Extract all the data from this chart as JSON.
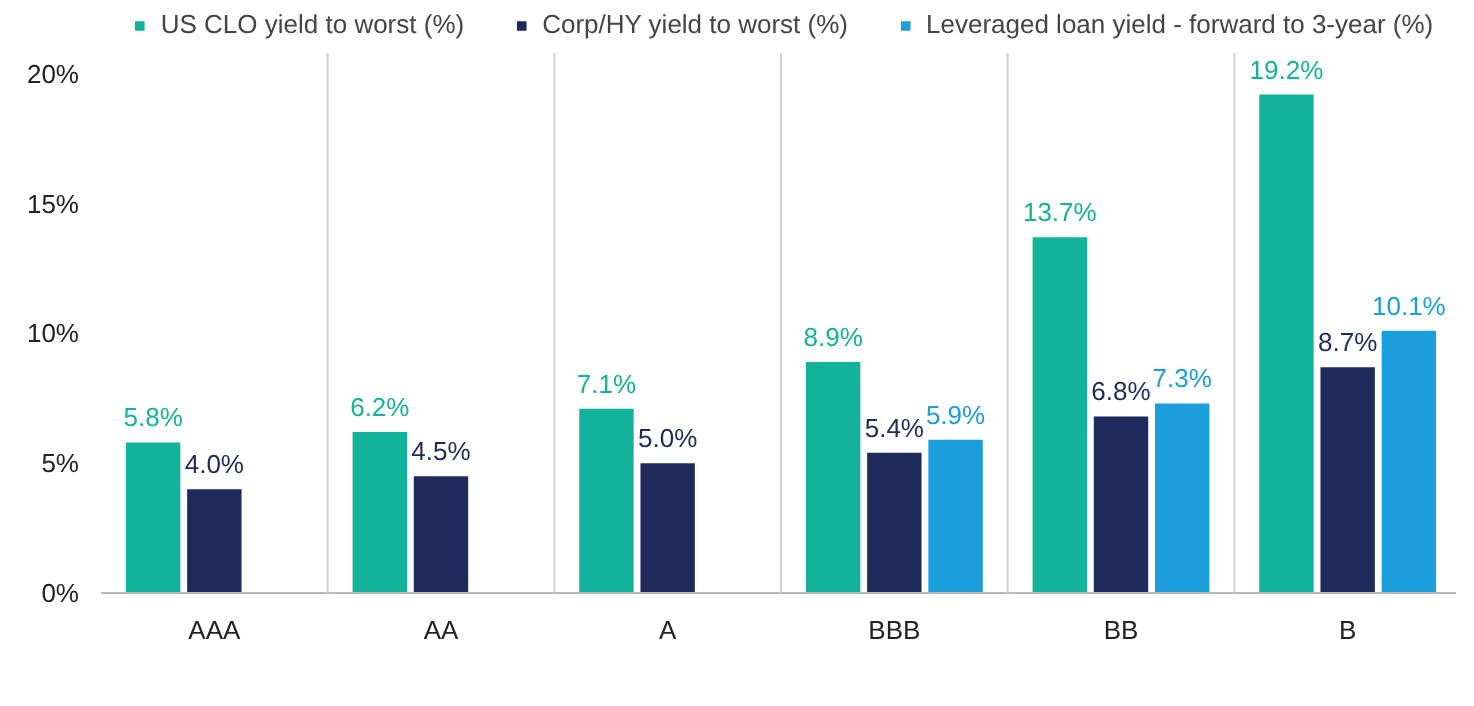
{
  "chart_data": {
    "type": "bar",
    "categories": [
      "AAA",
      "AA",
      "A",
      "BBB",
      "BB",
      "B"
    ],
    "series": [
      {
        "name": "US CLO yield to worst (%)",
        "color": "#12b39a",
        "values": [
          5.8,
          6.2,
          7.1,
          8.9,
          13.7,
          19.2
        ],
        "value_labels": [
          "5.8%",
          "6.2%",
          "7.1%",
          "8.9%",
          "13.7%",
          "19.2%"
        ]
      },
      {
        "name": "Corp/HY yield to worst (%)",
        "color": "#1f2a5c",
        "values": [
          4.0,
          4.5,
          5.0,
          5.4,
          6.8,
          8.7
        ],
        "value_labels": [
          "4.0%",
          "4.5%",
          "5.0%",
          "5.4%",
          "6.8%",
          "8.7%"
        ]
      },
      {
        "name": "Leveraged loan yield - forward to 3-year (%)",
        "color": "#1a9fdc",
        "values": [
          null,
          null,
          null,
          5.9,
          7.3,
          10.1
        ],
        "value_labels": [
          null,
          null,
          null,
          "5.9%",
          "7.3%",
          "10.1%"
        ]
      }
    ],
    "ylim": [
      0,
      20.8
    ],
    "yticks": [
      {
        "value": 0,
        "label": "0%"
      },
      {
        "value": 5,
        "label": "5%"
      },
      {
        "value": 10,
        "label": "10%"
      },
      {
        "value": 15,
        "label": "15%"
      },
      {
        "value": 20,
        "label": "20%"
      }
    ],
    "grid": "x",
    "legend": "top"
  }
}
